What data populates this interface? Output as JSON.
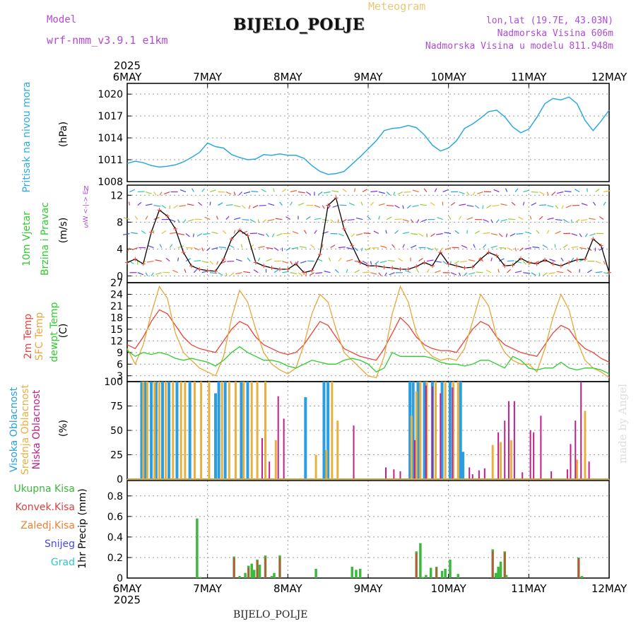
{
  "header": {
    "model_label": "Model",
    "model_name": "wrf-nmm_v3.9.1 e1km",
    "meteogram": "Meteogram",
    "station": "BIJELO_POLJE",
    "lonlat": "lon,lat (19.7E, 43.03N)",
    "elev": "Nadmorska Visina 606m",
    "elev_model": "Nadmorska Visina u modelu 811.948m"
  },
  "footer": {
    "station": "BIJELO_POLJE",
    "credit": "made by Angel"
  },
  "x_axis": {
    "labels": [
      "6MAY",
      "7MAY",
      "8MAY",
      "9MAY",
      "10MAY",
      "11MAY",
      "12MAY"
    ],
    "year": "2025"
  },
  "panels": {
    "pressure": {
      "label": "Pritisak na nivou mora",
      "unit": "(hPa)"
    },
    "wind": {
      "label1": "10m Vjetar",
      "label2": "Brzina i Pravac",
      "unit": "(m/s)",
      "compass": "W <-|-> E",
      "compass_n": "N",
      "compass_s": "S"
    },
    "temp": {
      "label1": "2m Temp",
      "label2": "SFC Temp",
      "label3": "dewpt Temp",
      "unit": "(C)"
    },
    "cloud": {
      "label1": "Visoka Oblacnost",
      "label2": "Srednja Oblacnost",
      "label3": "Niska Oblacnost",
      "unit": "(%)"
    },
    "precip": {
      "label": "1hr Precip (mm)",
      "legend": [
        "Ukupna Kisa",
        "Konvek.Kisa",
        "Zaledj.Kisa",
        "Snijeg",
        "Grad"
      ]
    }
  },
  "colors": {
    "pressure": "#2ea8e0",
    "temp2m": "#e8453a",
    "sfc": "#e8a73a",
    "dewpt": "#2ecc2e",
    "cloud_high": "#2a9ee0",
    "cloud_mid": "#e8b040",
    "cloud_low": "#c0208a",
    "precip_total": "#3cb83c",
    "precip_conv": "#e0403c",
    "precip_frz": "#f08030",
    "snow": "#4848e8",
    "grad": "#30c8c8",
    "purple": "#b04ad8"
  },
  "chart_data": [
    {
      "type": "line",
      "title": "Pritisak na nivou mora",
      "ylabel": "(hPa)",
      "ylim": [
        1008,
        1020.5
      ],
      "yticks": [
        1008,
        1011,
        1014,
        1017,
        1020
      ],
      "x_days": [
        0,
        0.1,
        0.2,
        0.3,
        0.4,
        0.5,
        0.6,
        0.7,
        0.8,
        0.9,
        1.0,
        1.1,
        1.2,
        1.3,
        1.4,
        1.5,
        1.6,
        1.7,
        1.8,
        1.9,
        2.0,
        2.1,
        2.2,
        2.3,
        2.4,
        2.5,
        2.6,
        2.7,
        2.8,
        2.9,
        3.0,
        3.1,
        3.2,
        3.3,
        3.4,
        3.5,
        3.6,
        3.7,
        3.8,
        3.9,
        4.0,
        4.1,
        4.2,
        4.3,
        4.4,
        4.5,
        4.6,
        4.7,
        4.8,
        4.9,
        5.0,
        5.1,
        5.2,
        5.3,
        5.4,
        5.5,
        5.6,
        5.7,
        5.8,
        5.9,
        6.0
      ],
      "series": [
        {
          "values": [
            1010.5,
            1010.8,
            1010.6,
            1010.2,
            1010.0,
            1010.1,
            1010.3,
            1010.7,
            1011.3,
            1012.0,
            1013.3,
            1012.8,
            1012.6,
            1011.7,
            1011.3,
            1011.0,
            1011.1,
            1011.7,
            1011.6,
            1011.8,
            1011.6,
            1011.6,
            1011.2,
            1010.2,
            1009.4,
            1009.0,
            1009.1,
            1009.4,
            1010.4,
            1011.4,
            1012.5,
            1013.6,
            1015.0,
            1015.3,
            1015.4,
            1015.7,
            1015.4,
            1014.4,
            1013.0,
            1012.2,
            1012.6,
            1013.6,
            1015.3,
            1015.9,
            1016.7,
            1017.6,
            1017.8,
            1016.9,
            1015.5,
            1014.7,
            1015.2,
            1016.8,
            1018.7,
            1019.4,
            1019.2,
            1019.6,
            1018.7,
            1016.4,
            1015.0,
            1016.3,
            1017.8
          ]
        }
      ]
    },
    {
      "type": "line",
      "title": "10m Vjetar Brzina i Pravac",
      "ylabel": "(m/s)",
      "ylim": [
        -1,
        13.5
      ],
      "yticks": [
        0,
        4,
        8,
        12
      ],
      "x_days": [
        0,
        0.1,
        0.2,
        0.3,
        0.4,
        0.5,
        0.6,
        0.7,
        0.8,
        0.9,
        1.0,
        1.1,
        1.2,
        1.3,
        1.4,
        1.5,
        1.6,
        1.7,
        1.8,
        1.9,
        2.0,
        2.1,
        2.2,
        2.3,
        2.4,
        2.5,
        2.6,
        2.7,
        2.8,
        2.9,
        3.0,
        3.1,
        3.2,
        3.3,
        3.4,
        3.5,
        3.6,
        3.7,
        3.8,
        3.9,
        4.0,
        4.1,
        4.2,
        4.3,
        4.4,
        4.5,
        4.6,
        4.7,
        4.8,
        4.9,
        5.0,
        5.1,
        5.2,
        5.3,
        5.4,
        5.5,
        5.6,
        5.7,
        5.8,
        5.9,
        6.0
      ],
      "series": [
        {
          "values": [
            2,
            2.5,
            1.8,
            6.5,
            9.8,
            8.9,
            7.0,
            3.5,
            1.5,
            1.0,
            0.8,
            0.7,
            2.5,
            5.5,
            6.8,
            6.0,
            2.0,
            1.5,
            1.2,
            1.0,
            1.0,
            1.8,
            0.5,
            0.8,
            3.2,
            10.5,
            11.6,
            7.0,
            4.5,
            2.0,
            1.5,
            1.5,
            1.3,
            1.2,
            1.0,
            1.0,
            1.4,
            2.0,
            1.5,
            3.5,
            1.8,
            1.5,
            1.2,
            1.3,
            2.5,
            3.5,
            3.0,
            1.5,
            1.6,
            2.6,
            2.0,
            1.8,
            2.4,
            1.8,
            1.5,
            2.0,
            2.4,
            2.5,
            5.5,
            4.5,
            0.5
          ]
        }
      ]
    },
    {
      "type": "line",
      "title": "2m Temp / SFC Temp / dewpt Temp",
      "ylabel": "(C)",
      "ylim": [
        1.5,
        27
      ],
      "yticks": [
        3,
        6,
        9,
        12,
        15,
        18,
        21,
        24,
        27
      ],
      "x_days": [
        0,
        0.1,
        0.2,
        0.3,
        0.4,
        0.5,
        0.6,
        0.7,
        0.8,
        0.9,
        1.0,
        1.1,
        1.2,
        1.3,
        1.4,
        1.5,
        1.6,
        1.7,
        1.8,
        1.9,
        2.0,
        2.1,
        2.2,
        2.3,
        2.4,
        2.5,
        2.6,
        2.7,
        2.8,
        2.9,
        3.0,
        3.1,
        3.2,
        3.3,
        3.4,
        3.5,
        3.6,
        3.7,
        3.8,
        3.9,
        4.0,
        4.1,
        4.2,
        4.3,
        4.4,
        4.5,
        4.6,
        4.7,
        4.8,
        4.9,
        5.0,
        5.1,
        5.2,
        5.3,
        5.4,
        5.5,
        5.6,
        5.7,
        5.8,
        5.9,
        6.0
      ],
      "series": [
        {
          "name": "2m Temp",
          "values": [
            11,
            10,
            13,
            17,
            20,
            19,
            16,
            13,
            11,
            10,
            9.5,
            9,
            12,
            15,
            17,
            16,
            13,
            11,
            10,
            9,
            8.5,
            9,
            11,
            14,
            17,
            16,
            13,
            10,
            9,
            8,
            7.5,
            7,
            10,
            14,
            18,
            16,
            13,
            11,
            10,
            9.5,
            9.5,
            9,
            12,
            15,
            17,
            16,
            13,
            11,
            10,
            9,
            8.5,
            8,
            11,
            14,
            16,
            15,
            12,
            10,
            9,
            7.5,
            6.5
          ]
        },
        {
          "name": "SFC Temp",
          "values": [
            10,
            6,
            11,
            19,
            26,
            23,
            14,
            9,
            7,
            5,
            4,
            3,
            8,
            18,
            25,
            22,
            15,
            9,
            6,
            4.5,
            3.5,
            5,
            11,
            19,
            24,
            22,
            15,
            9,
            7,
            5,
            3,
            2.5,
            8,
            19,
            26,
            22,
            14,
            10,
            8,
            7,
            7.5,
            7,
            10,
            17,
            24,
            21,
            13,
            9,
            7,
            6,
            6,
            4,
            10,
            18,
            24,
            20,
            12,
            7,
            5,
            4,
            2.5
          ]
        },
        {
          "name": "dewpt Temp",
          "values": [
            9.5,
            8,
            9,
            8.5,
            9,
            8.5,
            7.5,
            7,
            7.5,
            7,
            6.5,
            5.5,
            7,
            9,
            10.5,
            9,
            8,
            7,
            7,
            6.5,
            5.5,
            5,
            6,
            7,
            6.5,
            6,
            6,
            7,
            7.5,
            7,
            6,
            4,
            5,
            9,
            8,
            8,
            8,
            8,
            7.5,
            6.5,
            6,
            6,
            5.5,
            6,
            7,
            7,
            6,
            5,
            8,
            7,
            5,
            4.5,
            5,
            5,
            6.5,
            5,
            4.5,
            5,
            5,
            4.5,
            3.5
          ]
        }
      ]
    },
    {
      "type": "bar",
      "title": "Visoka / Srednja / Niska Oblacnost",
      "ylabel": "(%)",
      "ylim": [
        0,
        100
      ],
      "yticks": [
        0,
        25,
        50,
        75,
        100
      ],
      "series": [
        {
          "name": "Visoka Oblacnost",
          "x": [
            0.18,
            0.22,
            0.3,
            0.36,
            0.44,
            0.52,
            0.62,
            0.78,
            1.1,
            1.14,
            1.22,
            1.42,
            1.5,
            2.22,
            2.45,
            2.5,
            3.52,
            3.56,
            3.62,
            3.7,
            3.8,
            3.92,
            4.02,
            4.15,
            4.18
          ],
          "values": [
            100,
            100,
            100,
            100,
            100,
            100,
            100,
            100,
            88,
            100,
            100,
            100,
            100,
            84,
            100,
            100,
            100,
            100,
            100,
            100,
            100,
            100,
            100,
            100,
            28
          ]
        },
        {
          "name": "Srednja Oblacnost",
          "x": [
            0.2,
            0.25,
            0.34,
            0.4,
            0.48,
            0.57,
            0.67,
            0.72,
            0.84,
            0.92,
            1.02,
            1.18,
            1.27,
            1.35,
            1.45,
            1.55,
            1.62,
            1.72,
            1.85,
            2.35,
            2.48,
            2.55,
            2.62,
            3.54,
            3.6,
            3.65,
            3.73,
            3.84,
            3.96,
            4.06,
            4.12,
            4.55,
            4.65,
            4.78,
            5.6,
            5.7
          ],
          "values": [
            100,
            100,
            100,
            100,
            100,
            100,
            100,
            100,
            100,
            100,
            100,
            100,
            100,
            100,
            100,
            100,
            100,
            100,
            40,
            25,
            30,
            100,
            60,
            65,
            90,
            100,
            100,
            100,
            100,
            100,
            100,
            35,
            38,
            40,
            20,
            70
          ]
        },
        {
          "name": "Niska Oblacnost",
          "x": [
            1.68,
            1.77,
            1.88,
            1.95,
            2.82,
            3.22,
            3.32,
            3.4,
            3.58,
            3.72,
            3.8,
            3.9,
            4.05,
            4.26,
            4.3,
            4.38,
            4.45,
            4.62,
            4.7,
            4.75,
            4.82,
            4.92,
            5.02,
            5.06,
            5.15,
            5.28,
            5.48,
            5.52,
            5.58,
            5.65,
            5.75
          ],
          "values": [
            42,
            18,
            85,
            62,
            55,
            12,
            10,
            8,
            40,
            96,
            95,
            88,
            94,
            12,
            5,
            9,
            11,
            48,
            60,
            80,
            80,
            7,
            50,
            48,
            65,
            8,
            10,
            36,
            60,
            100,
            18
          ]
        }
      ]
    },
    {
      "type": "bar",
      "title": "1hr Precip (mm)",
      "ylabel": "1hr Precip (mm)",
      "ylim": [
        0,
        0.95
      ],
      "yticks": [
        0,
        0.2,
        0.4,
        0.6,
        0.8
      ],
      "series": [
        {
          "name": "Ukupna Kisa",
          "x": [
            0.87,
            0.91,
            1.33,
            1.4,
            1.47,
            1.51,
            1.55,
            1.58,
            1.62,
            1.65,
            1.72,
            1.8,
            1.83,
            1.9,
            2.35,
            2.8,
            2.85,
            2.9,
            3.6,
            3.65,
            3.68,
            3.72,
            3.78,
            3.85,
            3.92,
            3.96,
            4.02,
            4.12,
            4.55,
            4.59,
            4.62,
            4.65,
            4.7,
            4.72,
            5.62,
            5.66
          ],
          "values": [
            0.58,
            0.01,
            0.21,
            0.02,
            0.05,
            0.12,
            0.14,
            0.08,
            0.18,
            0.13,
            0.22,
            0.02,
            0.05,
            0.22,
            0.09,
            0.11,
            0.08,
            0.09,
            0.26,
            0.34,
            0.01,
            0.03,
            0.1,
            0.11,
            0.07,
            0.09,
            0.18,
            0.04,
            0.28,
            0.05,
            0.11,
            0.16,
            0.26,
            0.03,
            0.2,
            0.02
          ]
        },
        {
          "name": "Konvek.Kisa",
          "x": [
            1.33,
            1.51,
            1.62,
            1.72,
            1.9,
            3.6,
            3.85,
            4.55,
            4.7,
            5.62
          ],
          "values": [
            0.2,
            0.1,
            0.17,
            0.2,
            0.2,
            0.24,
            0.1,
            0.26,
            0.25,
            0.19
          ]
        }
      ]
    }
  ]
}
